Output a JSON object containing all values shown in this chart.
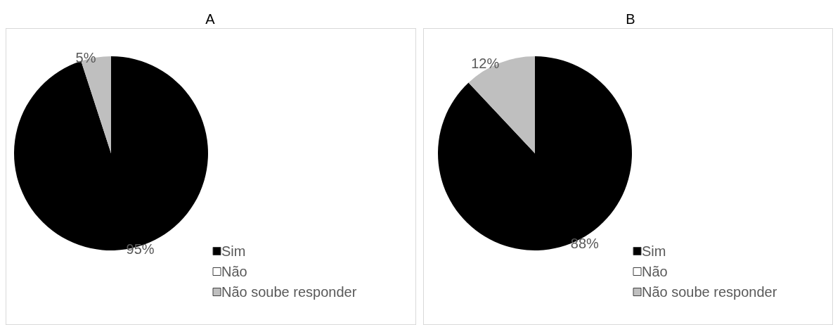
{
  "chart_data": [
    {
      "type": "pie",
      "title": "A",
      "categories": [
        "Sim",
        "Não",
        "Não soube responder"
      ],
      "values": [
        95,
        0,
        5
      ],
      "colors": [
        "#000000",
        "#ffffff",
        "#bfbfbf"
      ],
      "value_labels": [
        "95%",
        null,
        "5%"
      ],
      "legend": "bottom right"
    },
    {
      "type": "pie",
      "title": "B",
      "categories": [
        "Sim",
        "Não",
        "Não soube responder"
      ],
      "values": [
        88,
        0,
        12
      ],
      "colors": [
        "#000000",
        "#ffffff",
        "#bfbfbf"
      ],
      "value_labels": [
        "88%",
        null,
        "12%"
      ],
      "legend": "bottom right"
    }
  ]
}
